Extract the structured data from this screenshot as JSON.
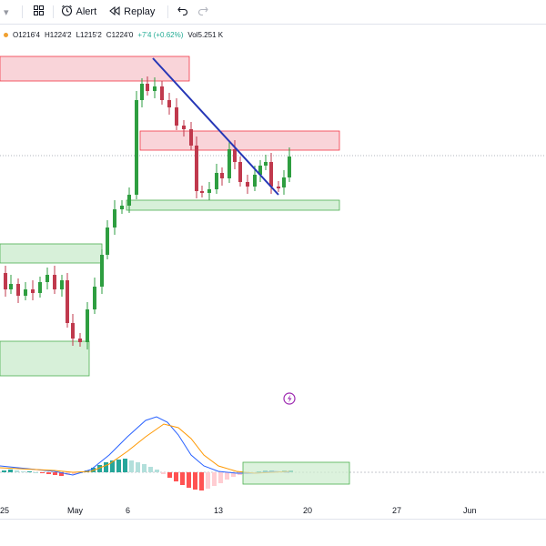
{
  "toolbar": {
    "alert_label": "Alert",
    "replay_label": "Replay"
  },
  "legend": {
    "open": "O1216'4",
    "high": "H1224'2",
    "low": "L1215'2",
    "close": "C1224'0",
    "change": "+7'4 (+0.62%)",
    "volume": "Vol5.251 K"
  },
  "x_axis": {
    "labels": [
      "25",
      "May",
      "6",
      "13",
      "20",
      "27",
      "Jun"
    ]
  },
  "colors": {
    "up": "#22ab94",
    "down": "#f23645",
    "candle_up": "#2e9e40",
    "candle_down": "#c0394d",
    "zone_red": "#f7c5cc",
    "zone_green": "#cdeccf",
    "trendline": "#2536b6",
    "macd": "#2962ff",
    "signal": "#ff9800"
  },
  "icons": [
    "chevron-down-icon",
    "indicators-icon",
    "alert-clock-icon",
    "replay-icon",
    "undo-icon",
    "redo-icon",
    "lightning-icon"
  ]
}
